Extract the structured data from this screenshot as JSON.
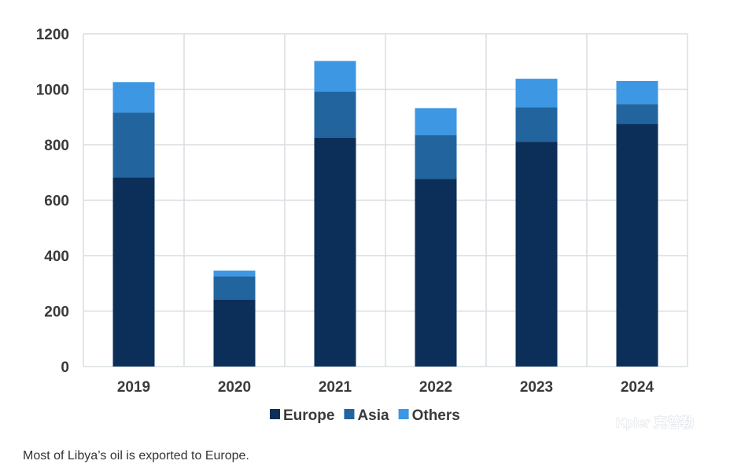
{
  "chart_data": {
    "type": "bar",
    "stacked": true,
    "categories": [
      "2019",
      "2020",
      "2021",
      "2022",
      "2023",
      "2024"
    ],
    "series": [
      {
        "name": "Europe",
        "values": [
          683,
          242,
          826,
          677,
          811,
          876
        ],
        "color": "#0c2f5a"
      },
      {
        "name": "Asia",
        "values": [
          233,
          83,
          166,
          158,
          124,
          70
        ],
        "color": "#22649e"
      },
      {
        "name": "Others",
        "values": [
          110,
          21,
          110,
          97,
          103,
          84
        ],
        "color": "#3d97e3"
      }
    ],
    "y_ticks": [
      "0",
      "200",
      "400",
      "600",
      "800",
      "1000",
      "1200"
    ],
    "ylim": [
      0,
      1200
    ],
    "grid": true,
    "legend_position": "bottom-center"
  },
  "watermark": "Kpler 克普勒",
  "caption": "Most of Libya’s oil is exported to Europe."
}
